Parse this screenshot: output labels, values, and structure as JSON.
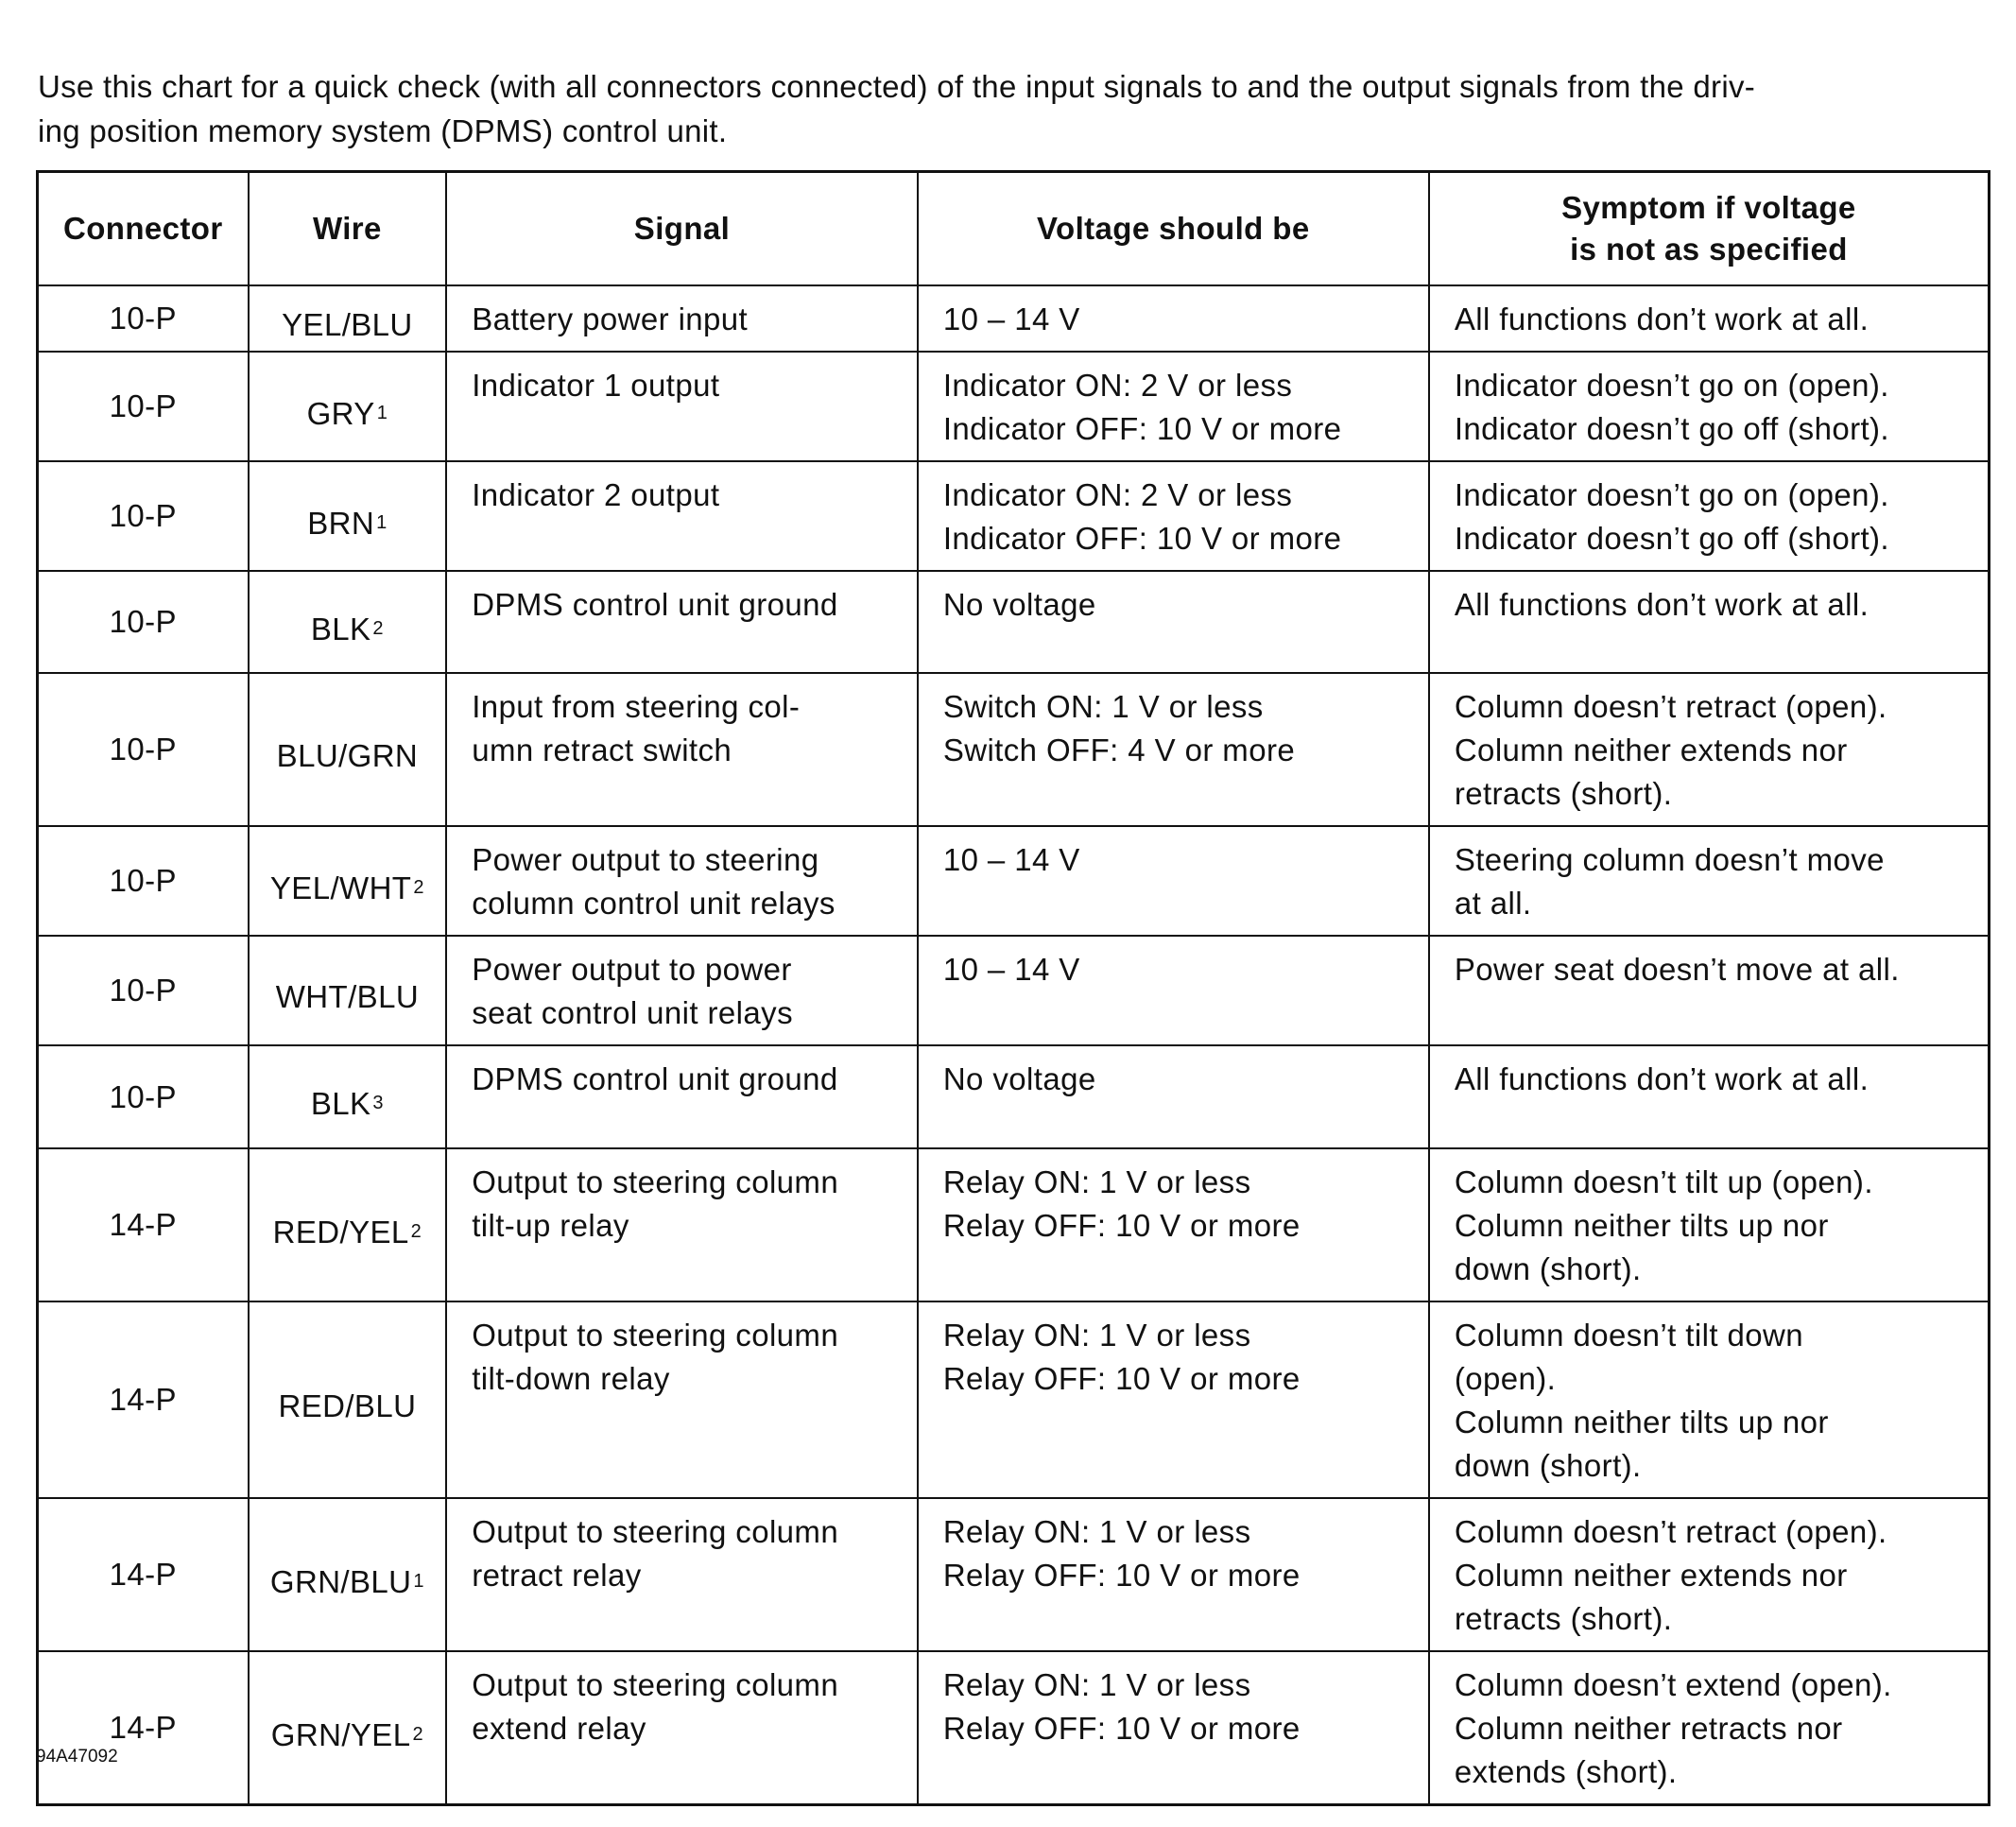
{
  "intro": "Use this chart for a quick check (with all connectors connected) of the input signals to and the output signals from the driv-\ning position memory system (DPMS) control unit.",
  "headers": {
    "connector": "Connector",
    "wire": "Wire",
    "signal": "Signal",
    "voltage": "Voltage should be",
    "symptom": "Symptom if voltage\nis not as specified"
  },
  "rows": [
    {
      "connector": "10-P",
      "wire": "YEL/BLU",
      "note": "",
      "signal": "Battery power input",
      "voltage": "10 – 14 V",
      "symptom": "All functions don’t work at all."
    },
    {
      "connector": "10-P",
      "wire": "GRY",
      "note": "1",
      "signal": "Indicator 1 output",
      "voltage": "Indicator ON: 2 V or less\nIndicator OFF: 10 V or more",
      "symptom": "Indicator doesn’t go on (open).\nIndicator doesn’t go off (short)."
    },
    {
      "connector": "10-P",
      "wire": "BRN",
      "note": "1",
      "signal": "Indicator 2 output",
      "voltage": "Indicator ON: 2 V or less\nIndicator OFF: 10 V or more",
      "symptom": "Indicator doesn’t go on (open).\nIndicator doesn’t go off (short)."
    },
    {
      "connector": "10-P",
      "wire": "BLK",
      "note": "2",
      "signal": "DPMS control unit ground",
      "voltage": "No voltage",
      "symptom": "All functions don’t work at all."
    },
    {
      "connector": "10-P",
      "wire": "BLU/GRN",
      "note": "",
      "signal": "Input from steering col-\numn retract switch",
      "voltage": "Switch ON: 1 V or less\nSwitch OFF: 4 V or more",
      "symptom": "Column doesn’t retract (open).\nColumn neither extends nor\nretracts (short)."
    },
    {
      "connector": "10-P",
      "wire": "YEL/WHT",
      "note": "2",
      "signal": "Power output to steering\ncolumn control unit relays",
      "voltage": "10 – 14 V",
      "symptom": "Steering column doesn’t move\nat all."
    },
    {
      "connector": "10-P",
      "wire": "WHT/BLU",
      "note": "",
      "signal": "Power output to power\nseat control unit relays",
      "voltage": "10 – 14 V",
      "symptom": "Power seat doesn’t move at all."
    },
    {
      "connector": "10-P",
      "wire": "BLK",
      "note": "3",
      "signal": "DPMS control unit ground",
      "voltage": "No voltage",
      "symptom": "All functions don’t work at all."
    },
    {
      "connector": "14-P",
      "wire": "RED/YEL",
      "note": "2",
      "signal": "Output to steering column\ntilt-up relay",
      "voltage": "Relay ON: 1 V or less\nRelay OFF: 10 V or more",
      "symptom": "Column doesn’t tilt up (open).\nColumn neither tilts up nor\ndown (short)."
    },
    {
      "connector": "14-P",
      "wire": "RED/BLU",
      "note": "",
      "signal": "Output to steering column\ntilt-down relay",
      "voltage": "Relay ON: 1 V or less\nRelay OFF: 10 V or more",
      "symptom": "Column doesn’t tilt down\n(open).\nColumn neither tilts up nor\ndown (short)."
    },
    {
      "connector": "14-P",
      "wire": "GRN/BLU",
      "note": "1",
      "signal": "Output to steering column\nretract relay",
      "voltage": "Relay ON: 1 V or less\nRelay OFF: 10 V or more",
      "symptom": "Column doesn’t retract (open).\nColumn neither extends nor\nretracts (short)."
    },
    {
      "connector": "14-P",
      "wire": "GRN/YEL",
      "note": "2",
      "signal": "Output to steering column\nextend relay",
      "voltage": "Relay ON: 1 V or less\nRelay OFF: 10 V or more",
      "symptom": "Column doesn’t extend (open).\nColumn neither retracts nor\nextends (short)."
    }
  ],
  "footer": "94A47092"
}
